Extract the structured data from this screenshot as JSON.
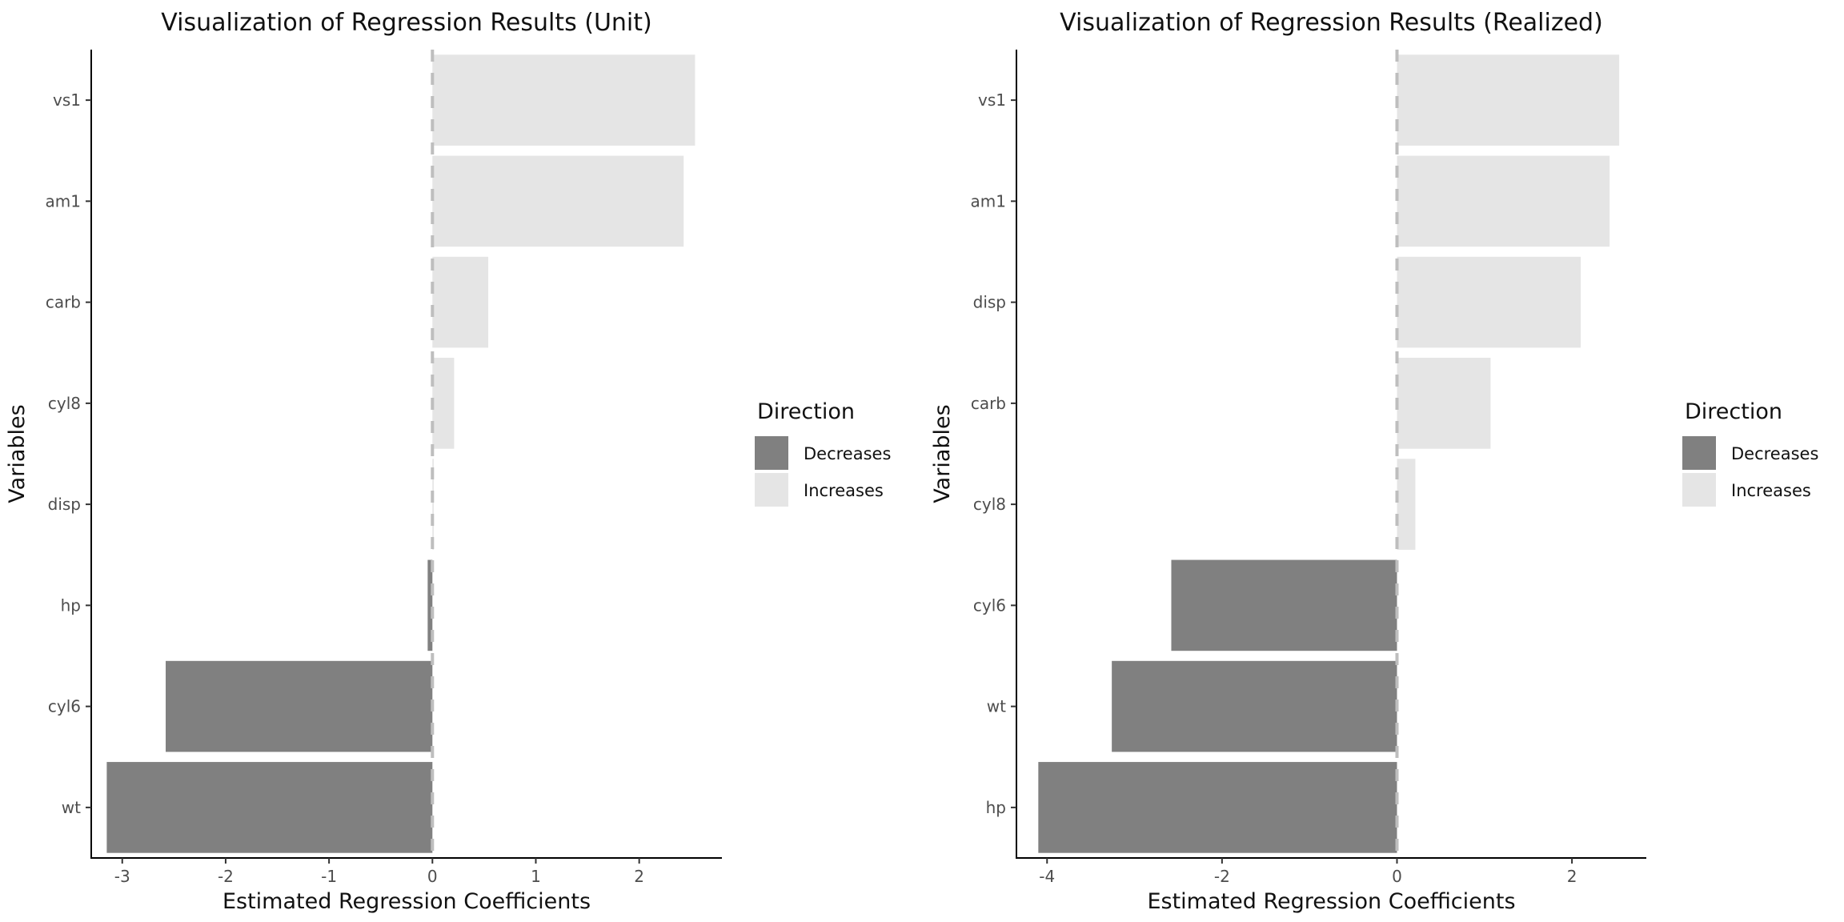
{
  "chart_data": [
    {
      "type": "bar",
      "orientation": "horizontal",
      "title": "Visualization of Regression Results (Unit)",
      "xlabel": "Estimated Regression Coefficients",
      "ylabel": "Variables",
      "xlim": [
        -3.3,
        2.8
      ],
      "xticks": [
        -3,
        -2,
        -1,
        0,
        1,
        2
      ],
      "reference_line": 0,
      "grid": false,
      "categories": [
        "vs1",
        "am1",
        "carb",
        "cyl8",
        "disp",
        "hp",
        "cyl6",
        "wt"
      ],
      "values": [
        2.54,
        2.43,
        0.54,
        0.21,
        0.0129,
        -0.046,
        -2.58,
        -3.15
      ],
      "directions": [
        "Increases",
        "Increases",
        "Increases",
        "Increases",
        "Increases",
        "Decreases",
        "Decreases",
        "Decreases"
      ],
      "legend": {
        "title": "Direction",
        "entries": [
          {
            "label": "Decreases",
            "color": "#808080"
          },
          {
            "label": "Increases",
            "color": "#E5E5E5"
          }
        ],
        "position": "right"
      }
    },
    {
      "type": "bar",
      "orientation": "horizontal",
      "title": "Visualization of Regression Results (Realized)",
      "xlabel": "Estimated Regression Coefficients",
      "ylabel": "Variables",
      "xlim": [
        -4.35,
        2.85
      ],
      "xticks": [
        -4,
        -2,
        0,
        2
      ],
      "reference_line": 0,
      "grid": false,
      "categories": [
        "vs1",
        "am1",
        "disp",
        "carb",
        "cyl8",
        "cyl6",
        "wt",
        "hp"
      ],
      "values": [
        2.54,
        2.43,
        2.1,
        1.07,
        0.21,
        -2.58,
        -3.26,
        -4.1
      ],
      "directions": [
        "Increases",
        "Increases",
        "Increases",
        "Increases",
        "Increases",
        "Decreases",
        "Decreases",
        "Decreases"
      ],
      "legend": {
        "title": "Direction",
        "entries": [
          {
            "label": "Decreases",
            "color": "#808080"
          },
          {
            "label": "Increases",
            "color": "#E5E5E5"
          }
        ],
        "position": "right"
      }
    }
  ],
  "colors": {
    "decreases": "#808080",
    "increases": "#E5E5E5",
    "reference_line": "#BEBEBE",
    "axis": "#000000"
  }
}
